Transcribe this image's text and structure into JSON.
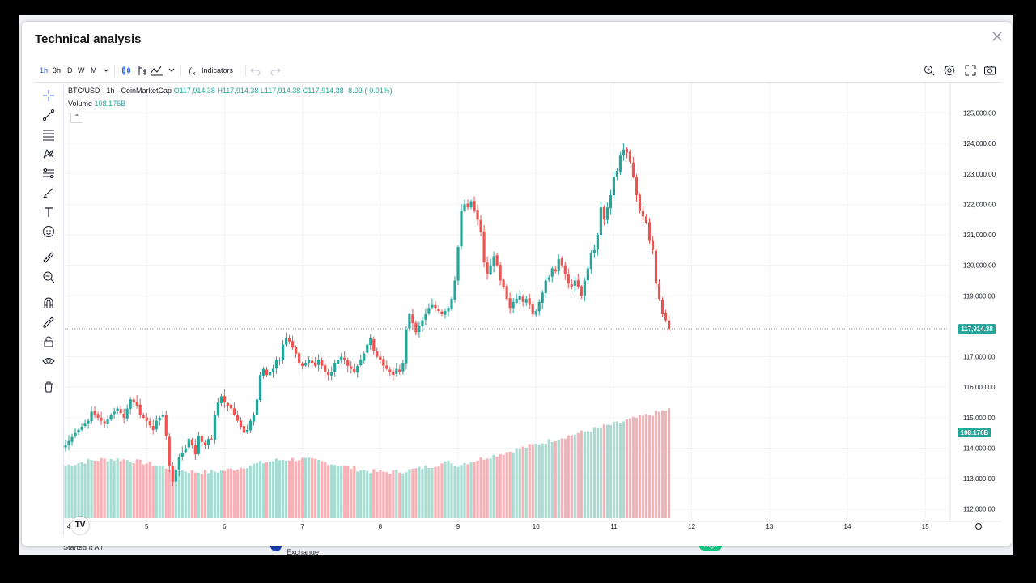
{
  "background": {
    "row_label": "Started It All",
    "exchange_label": "Exchange",
    "badge": "High"
  },
  "modal": {
    "title": "Technical analysis"
  },
  "toolbar": {
    "intervals": [
      "1h",
      "3h",
      "D",
      "W",
      "M"
    ],
    "active_interval": "1h",
    "indicators_label": "Indicators"
  },
  "legend": {
    "symbol": "BTC/USD · 1h · CoinMarketCap",
    "open": "O117,914.38",
    "high": "H117,914.38",
    "low": "L117,914.38",
    "close": "C117,914.38",
    "change": "-8.09 (-0.01%)",
    "volume_label": "Volume",
    "volume_value": "108.176B"
  },
  "colors": {
    "up": "#26a69a",
    "down": "#ef5350",
    "volume_up": "#a8dcd2",
    "volume_down": "#f7b0b5",
    "accent": "#2962ff",
    "price_tag": "#26a69a"
  },
  "icons": [
    "crosshair-icon",
    "trend-line-icon",
    "fib-icon",
    "pattern-icon",
    "projection-icon",
    "brush-icon",
    "text-icon",
    "emoji-icon",
    "ruler-icon",
    "zoom-icon",
    "magnet-icon",
    "lock-draw-icon",
    "lock-icon",
    "eye-icon",
    "trash-icon"
  ],
  "chart_data": {
    "type": "candlestick",
    "symbol": "BTC/USD",
    "interval": "1h",
    "source": "CoinMarketCap",
    "x_labels": [
      "4",
      "5",
      "6",
      "7",
      "8",
      "9",
      "10",
      "11",
      "12",
      "13",
      "14",
      "15"
    ],
    "y_ticks": [
      "125,000.00",
      "124,000.00",
      "123,000.00",
      "122,000.00",
      "121,000.00",
      "120,000.00",
      "119,000.00",
      "118,000.00",
      "117,000.00",
      "116,000.00",
      "115,000.00",
      "114,000.00",
      "113,000.00",
      "112,000.00"
    ],
    "ylim": [
      111700,
      125200
    ],
    "last_price": 117914.38,
    "last_price_label": "117,914.38",
    "volume_label": "108.176B",
    "close_path": [
      [
        0,
        114100
      ],
      [
        3,
        114500
      ],
      [
        5,
        114700
      ],
      [
        7,
        114900
      ],
      [
        8,
        115200
      ],
      [
        10,
        115000
      ],
      [
        12,
        114800
      ],
      [
        14,
        115100
      ],
      [
        16,
        115300
      ],
      [
        18,
        115000
      ],
      [
        20,
        115600
      ],
      [
        22,
        115400
      ],
      [
        23,
        115100
      ],
      [
        25,
        114900
      ],
      [
        27,
        114600
      ],
      [
        28,
        114900
      ],
      [
        30,
        115100
      ],
      [
        31,
        114400
      ],
      [
        32,
        113400
      ],
      [
        33,
        112900
      ],
      [
        34,
        113300
      ],
      [
        35,
        113700
      ],
      [
        37,
        114000
      ],
      [
        38,
        114300
      ],
      [
        39,
        114100
      ],
      [
        40,
        113800
      ],
      [
        41,
        114400
      ],
      [
        42,
        114200
      ],
      [
        43,
        114100
      ],
      [
        44,
        114300
      ],
      [
        45,
        114300
      ],
      [
        46,
        115100
      ],
      [
        47,
        115500
      ],
      [
        48,
        115700
      ],
      [
        49,
        115500
      ],
      [
        50,
        115400
      ],
      [
        51,
        115300
      ],
      [
        52,
        115100
      ],
      [
        53,
        114900
      ],
      [
        54,
        114700
      ],
      [
        55,
        114500
      ],
      [
        56,
        114600
      ],
      [
        57,
        114900
      ],
      [
        58,
        115100
      ],
      [
        59,
        115600
      ],
      [
        60,
        116400
      ],
      [
        61,
        116600
      ],
      [
        62,
        116400
      ],
      [
        63,
        116500
      ],
      [
        64,
        116600
      ],
      [
        65,
        116900
      ],
      [
        66,
        116900
      ],
      [
        67,
        117400
      ],
      [
        68,
        117600
      ],
      [
        69,
        117500
      ],
      [
        70,
        117300
      ],
      [
        71,
        117100
      ],
      [
        72,
        116800
      ],
      [
        73,
        116700
      ],
      [
        74,
        116800
      ],
      [
        75,
        116900
      ],
      [
        76,
        116800
      ],
      [
        77,
        116700
      ],
      [
        78,
        116900
      ],
      [
        79,
        116700
      ],
      [
        80,
        116500
      ],
      [
        81,
        116400
      ],
      [
        82,
        116500
      ],
      [
        83,
        116800
      ],
      [
        84,
        116900
      ],
      [
        85,
        117000
      ],
      [
        86,
        116900
      ],
      [
        87,
        116700
      ],
      [
        88,
        116600
      ],
      [
        89,
        116500
      ],
      [
        90,
        116700
      ],
      [
        91,
        116900
      ],
      [
        92,
        117100
      ],
      [
        93,
        117400
      ],
      [
        94,
        117600
      ],
      [
        95,
        117200
      ],
      [
        96,
        117000
      ],
      [
        97,
        116900
      ],
      [
        98,
        116700
      ],
      [
        99,
        116600
      ],
      [
        100,
        116500
      ],
      [
        101,
        116400
      ],
      [
        102,
        116600
      ],
      [
        103,
        116500
      ],
      [
        104,
        116800
      ],
      [
        105,
        117900
      ],
      [
        106,
        118400
      ],
      [
        107,
        118100
      ],
      [
        108,
        117800
      ],
      [
        109,
        118000
      ],
      [
        110,
        118200
      ],
      [
        111,
        118400
      ],
      [
        112,
        118600
      ],
      [
        113,
        118700
      ],
      [
        114,
        118600
      ],
      [
        115,
        118500
      ],
      [
        116,
        118400
      ],
      [
        117,
        118500
      ],
      [
        118,
        118600
      ],
      [
        119,
        118900
      ],
      [
        120,
        119500
      ],
      [
        121,
        120600
      ],
      [
        122,
        121800
      ],
      [
        123,
        122000
      ],
      [
        124,
        121900
      ],
      [
        125,
        122100
      ],
      [
        126,
        121800
      ],
      [
        127,
        121500
      ],
      [
        128,
        121100
      ],
      [
        129,
        120100
      ],
      [
        130,
        119700
      ],
      [
        131,
        120000
      ],
      [
        132,
        120300
      ],
      [
        133,
        120000
      ],
      [
        134,
        119500
      ],
      [
        135,
        119300
      ],
      [
        136,
        118900
      ],
      [
        137,
        118600
      ],
      [
        138,
        118800
      ],
      [
        139,
        118900
      ],
      [
        140,
        119000
      ],
      [
        141,
        118800
      ],
      [
        142,
        118900
      ],
      [
        143,
        118700
      ],
      [
        144,
        118400
      ],
      [
        145,
        118500
      ],
      [
        146,
        118800
      ],
      [
        147,
        119100
      ],
      [
        148,
        119500
      ],
      [
        149,
        119600
      ],
      [
        150,
        119900
      ],
      [
        151,
        119800
      ],
      [
        152,
        120200
      ],
      [
        153,
        120000
      ],
      [
        154,
        119700
      ],
      [
        155,
        119400
      ],
      [
        156,
        119300
      ],
      [
        157,
        119500
      ],
      [
        158,
        119300
      ],
      [
        159,
        119000
      ],
      [
        160,
        119500
      ],
      [
        161,
        119900
      ],
      [
        162,
        120400
      ],
      [
        163,
        120500
      ],
      [
        164,
        121000
      ],
      [
        165,
        121900
      ],
      [
        166,
        121500
      ],
      [
        167,
        121900
      ],
      [
        168,
        122300
      ],
      [
        169,
        122900
      ],
      [
        170,
        123100
      ],
      [
        171,
        123600
      ],
      [
        172,
        123800
      ],
      [
        173,
        123700
      ],
      [
        174,
        123400
      ],
      [
        175,
        122900
      ],
      [
        176,
        122300
      ],
      [
        177,
        121800
      ],
      [
        178,
        121600
      ],
      [
        179,
        121400
      ],
      [
        180,
        120800
      ],
      [
        181,
        120500
      ],
      [
        182,
        119400
      ],
      [
        183,
        118900
      ],
      [
        184,
        118400
      ],
      [
        185,
        118200
      ],
      [
        186,
        117914
      ]
    ]
  }
}
